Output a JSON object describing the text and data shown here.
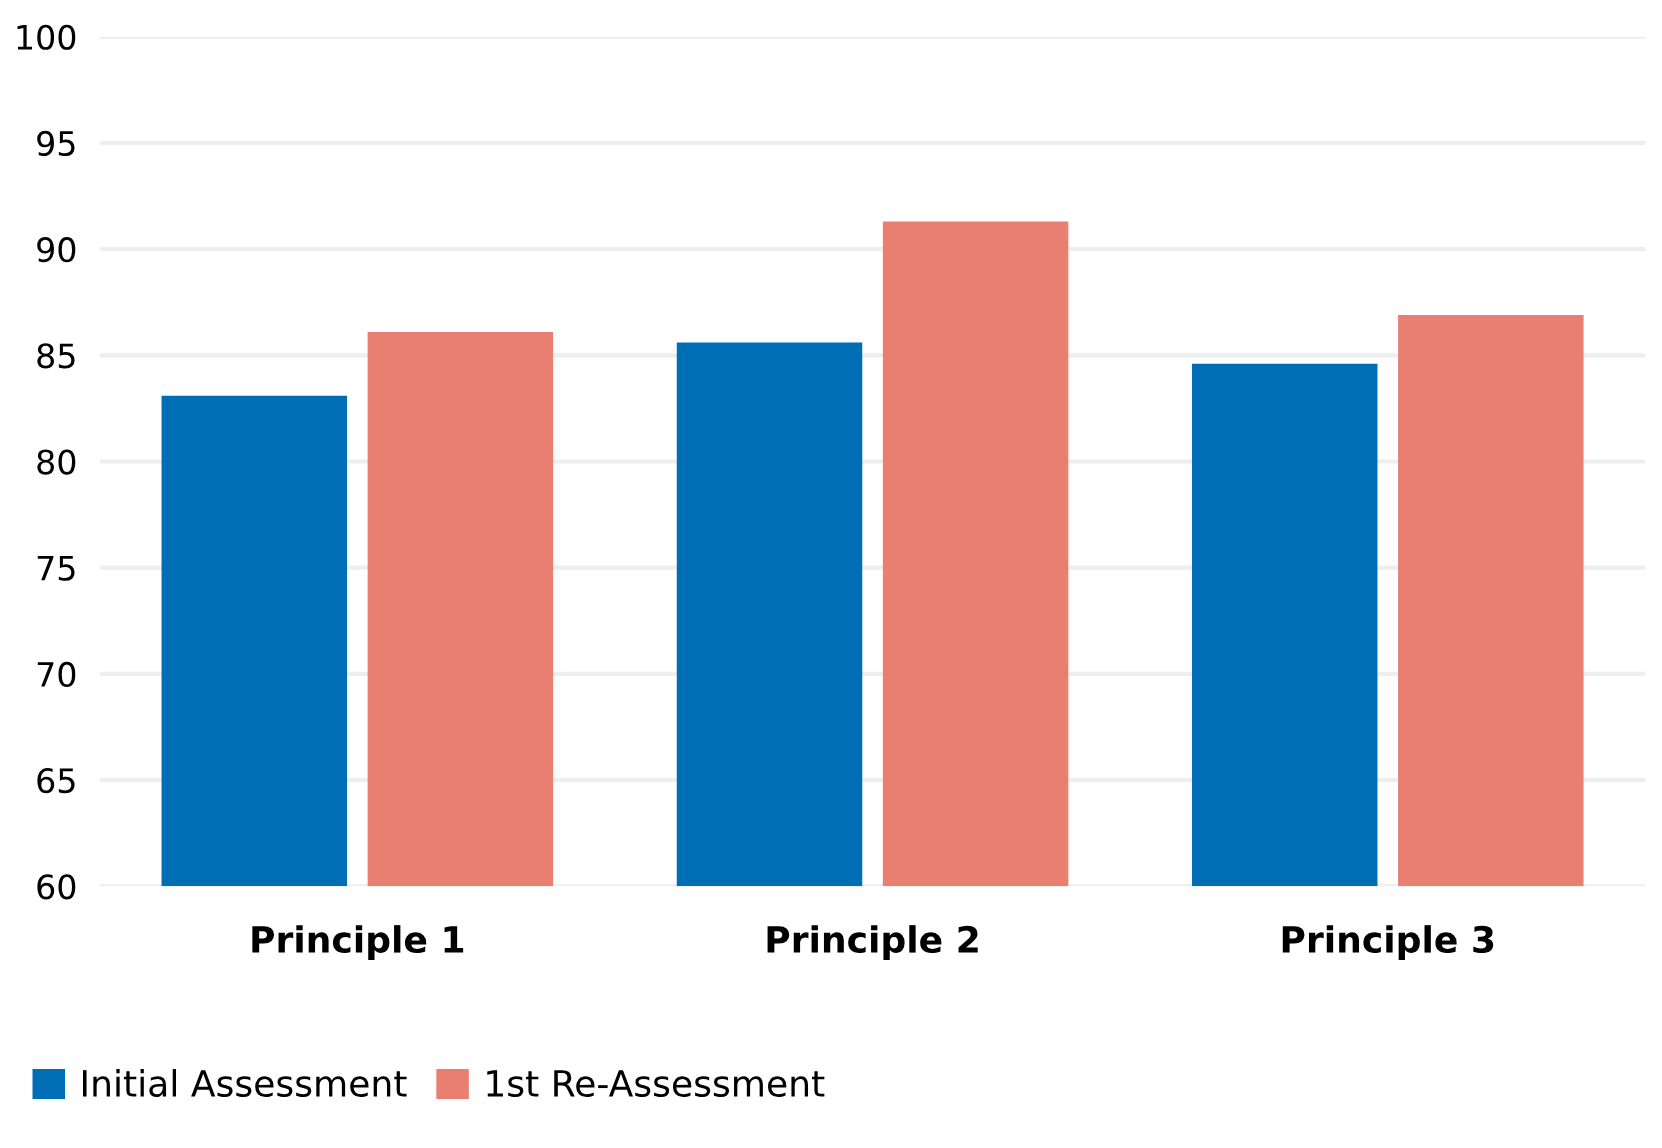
{
  "chart_data": {
    "type": "bar",
    "categories": [
      "Principle 1",
      "Principle 2",
      "Principle 3"
    ],
    "series": [
      {
        "name": "Initial Assessment",
        "color": "#006eb5",
        "values": [
          83.1,
          85.6,
          84.6
        ]
      },
      {
        "name": "1st Re-Assessment",
        "color": "#e87f70",
        "values": [
          86.1,
          91.3,
          86.9
        ]
      }
    ],
    "ylim": [
      60,
      100
    ],
    "yticks": [
      60,
      65,
      70,
      75,
      80,
      85,
      90,
      95,
      100
    ],
    "grid": "y",
    "legend": "bottom left"
  }
}
